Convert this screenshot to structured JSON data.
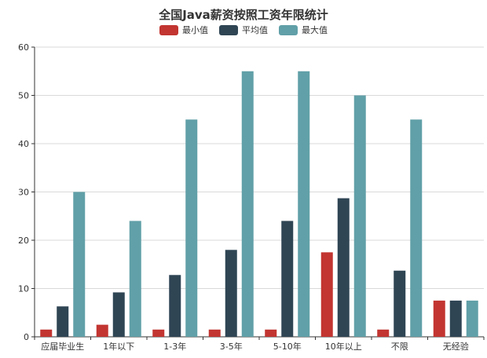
{
  "chart_data": {
    "type": "bar",
    "title": "全国Java薪资按照工资年限统计",
    "categories": [
      "应届毕业生",
      "1年以下",
      "1-3年",
      "3-5年",
      "5-10年",
      "10年以上",
      "不限",
      "无经验"
    ],
    "series": [
      {
        "name": "最小值",
        "color": "#c23531",
        "values": [
          1.5,
          2.5,
          1.5,
          1.5,
          1.5,
          17.5,
          1.5,
          7.5
        ]
      },
      {
        "name": "平均值",
        "color": "#2f4554",
        "values": [
          6.3,
          9.2,
          12.8,
          18,
          24,
          28.7,
          13.7,
          7.5
        ]
      },
      {
        "name": "最大值",
        "color": "#61a0a8",
        "values": [
          30,
          24,
          45,
          55,
          55,
          50,
          45,
          7.5
        ]
      }
    ],
    "ylim": [
      0,
      60
    ],
    "yticks": [
      0,
      10,
      20,
      30,
      40,
      50,
      60
    ],
    "grid": true,
    "legend_position": "top-center"
  }
}
